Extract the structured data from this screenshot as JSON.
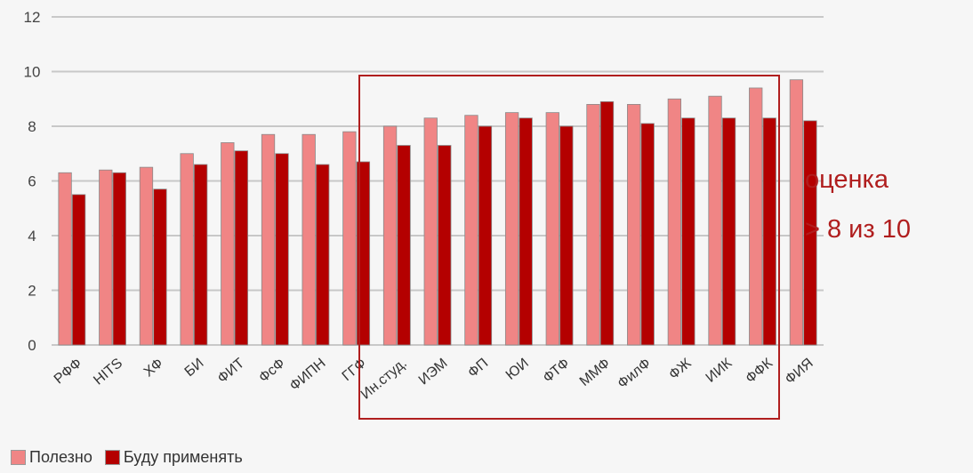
{
  "chart_data": {
    "type": "bar",
    "categories": [
      "РФФ",
      "HITS",
      "ХФ",
      "БИ",
      "ФИТ",
      "ФсФ",
      "ФИПН",
      "ГГФ",
      "Ин.студ.",
      "ИЭМ",
      "ФП",
      "ЮИ",
      "ФТФ",
      "ММФ",
      "ФилФ",
      "ФЖ",
      "ИИК",
      "ФФК",
      "ФИЯ"
    ],
    "series": [
      {
        "name": "Полезно",
        "values": [
          6.3,
          6.4,
          6.5,
          7.0,
          7.4,
          7.7,
          7.7,
          7.8,
          8.0,
          8.3,
          8.4,
          8.5,
          8.5,
          8.8,
          8.8,
          9.0,
          9.1,
          9.4,
          9.7
        ]
      },
      {
        "name": "Буду применять",
        "values": [
          5.5,
          6.3,
          5.7,
          6.6,
          7.1,
          7.0,
          6.6,
          6.7,
          7.3,
          7.3,
          8.0,
          8.3,
          8.0,
          8.9,
          8.1,
          8.3,
          8.3,
          8.3,
          8.2
        ]
      }
    ],
    "yticks": [
      0,
      2,
      4,
      6,
      8,
      10,
      12
    ],
    "ylim": [
      0,
      12
    ],
    "grid": true,
    "legend_position": "bottom-left",
    "annotation_lines": [
      "оценка",
      "> 8 из 10"
    ],
    "colors": {
      "Полезно": "#f08585",
      "Буду применять": "#b40000",
      "annotation": "#b01e1e",
      "grid": "#c8c8c8"
    }
  }
}
